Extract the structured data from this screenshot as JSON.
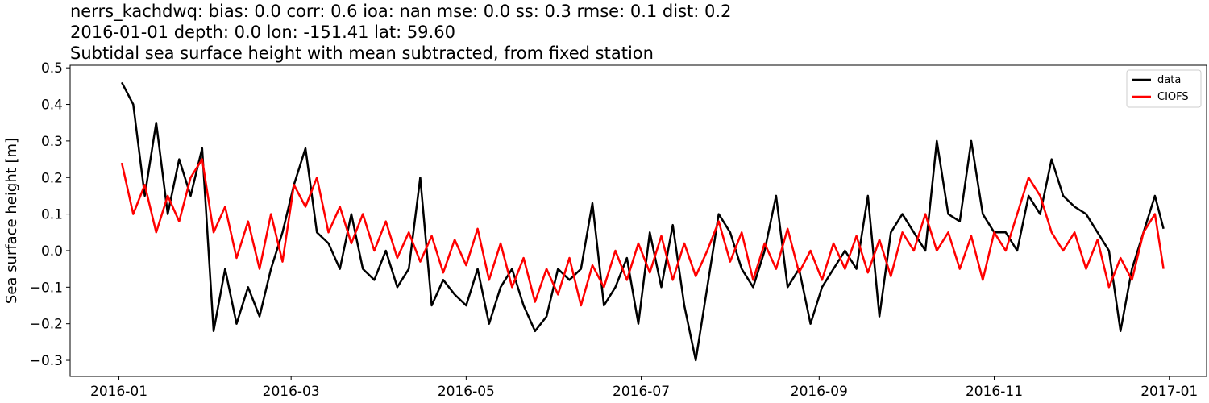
{
  "chart_data": {
    "type": "line",
    "title_lines": [
      "nerrs_kachdwq: bias: 0.0  corr: 0.6  ioa: nan  mse: 0.0  ss: 0.3  rmse: 0.1  dist: 0.2",
      "2016-01-01 depth: 0.0 lon: -151.41 lat: 59.60",
      "Subtidal sea surface height with mean subtracted, from fixed station"
    ],
    "xlabel": "",
    "ylabel": "Sea surface height [m]",
    "xlim": [
      "2015-12-15",
      "2017-01-14"
    ],
    "ylim": [
      -0.344,
      0.507
    ],
    "xticks": [
      "2016-01",
      "2016-03",
      "2016-05",
      "2016-07",
      "2016-09",
      "2016-11",
      "2017-01"
    ],
    "yticks": [
      0.5,
      0.4,
      0.3,
      0.2,
      0.1,
      0.0,
      -0.1,
      -0.2,
      -0.3
    ],
    "ytick_labels": [
      "0.5",
      "0.4",
      "0.3",
      "0.2",
      "0.1",
      "0.0",
      "−0.1",
      "−0.2",
      "−0.3"
    ],
    "grid": false,
    "legend_position": "top-right",
    "x": [
      "2016-01-02",
      "2016-01-06",
      "2016-01-10",
      "2016-01-14",
      "2016-01-18",
      "2016-01-22",
      "2016-01-26",
      "2016-01-30",
      "2016-02-03",
      "2016-02-07",
      "2016-02-11",
      "2016-02-15",
      "2016-02-19",
      "2016-02-23",
      "2016-02-27",
      "2016-03-02",
      "2016-03-06",
      "2016-03-10",
      "2016-03-14",
      "2016-03-18",
      "2016-03-22",
      "2016-03-26",
      "2016-03-30",
      "2016-04-03",
      "2016-04-07",
      "2016-04-11",
      "2016-04-15",
      "2016-04-19",
      "2016-04-23",
      "2016-04-27",
      "2016-05-01",
      "2016-05-05",
      "2016-05-09",
      "2016-05-13",
      "2016-05-17",
      "2016-05-21",
      "2016-05-25",
      "2016-05-29",
      "2016-06-02",
      "2016-06-06",
      "2016-06-10",
      "2016-06-14",
      "2016-06-18",
      "2016-06-22",
      "2016-06-26",
      "2016-06-30",
      "2016-07-04",
      "2016-07-08",
      "2016-07-12",
      "2016-07-16",
      "2016-07-20",
      "2016-07-24",
      "2016-07-28",
      "2016-08-01",
      "2016-08-05",
      "2016-08-09",
      "2016-08-13",
      "2016-08-17",
      "2016-08-21",
      "2016-08-25",
      "2016-08-29",
      "2016-09-02",
      "2016-09-06",
      "2016-09-10",
      "2016-09-14",
      "2016-09-18",
      "2016-09-22",
      "2016-09-26",
      "2016-09-30",
      "2016-10-04",
      "2016-10-08",
      "2016-10-12",
      "2016-10-16",
      "2016-10-20",
      "2016-10-24",
      "2016-10-28",
      "2016-11-01",
      "2016-11-05",
      "2016-11-09",
      "2016-11-13",
      "2016-11-17",
      "2016-11-21",
      "2016-11-25",
      "2016-11-29",
      "2016-12-03",
      "2016-12-07",
      "2016-12-11",
      "2016-12-15",
      "2016-12-19",
      "2016-12-23",
      "2016-12-27",
      "2016-12-30"
    ],
    "series": [
      {
        "name": "data",
        "color": "#000000",
        "values": [
          0.46,
          0.4,
          0.15,
          0.35,
          0.1,
          0.25,
          0.15,
          0.28,
          -0.22,
          -0.05,
          -0.2,
          -0.1,
          -0.18,
          -0.05,
          0.05,
          0.18,
          0.28,
          0.05,
          0.02,
          -0.05,
          0.1,
          -0.05,
          -0.08,
          0.0,
          -0.1,
          -0.05,
          0.2,
          -0.15,
          -0.08,
          -0.12,
          -0.15,
          -0.05,
          -0.2,
          -0.1,
          -0.05,
          -0.15,
          -0.22,
          -0.18,
          -0.05,
          -0.08,
          -0.05,
          0.13,
          -0.15,
          -0.1,
          -0.02,
          -0.2,
          0.05,
          -0.1,
          0.07,
          -0.15,
          -0.3,
          -0.1,
          0.1,
          0.05,
          -0.05,
          -0.1,
          0.0,
          0.15,
          -0.1,
          -0.05,
          -0.2,
          -0.1,
          -0.05,
          0.0,
          -0.05,
          0.15,
          -0.18,
          0.05,
          0.1,
          0.05,
          0.0,
          0.3,
          0.1,
          0.08,
          0.3,
          0.1,
          0.05,
          0.05,
          0.0,
          0.15,
          0.1,
          0.25,
          0.15,
          0.12,
          0.1,
          0.05,
          0.0,
          -0.22,
          -0.05,
          0.05,
          0.15,
          0.06
        ]
      },
      {
        "name": "CIOFS",
        "color": "#ff0000",
        "values": [
          0.24,
          0.1,
          0.18,
          0.05,
          0.15,
          0.08,
          0.2,
          0.25,
          0.05,
          0.12,
          -0.02,
          0.08,
          -0.05,
          0.1,
          -0.03,
          0.18,
          0.12,
          0.2,
          0.05,
          0.12,
          0.02,
          0.1,
          0.0,
          0.08,
          -0.02,
          0.05,
          -0.03,
          0.04,
          -0.06,
          0.03,
          -0.04,
          0.06,
          -0.08,
          0.02,
          -0.1,
          -0.02,
          -0.14,
          -0.05,
          -0.12,
          -0.02,
          -0.15,
          -0.04,
          -0.1,
          0.0,
          -0.08,
          0.02,
          -0.06,
          0.04,
          -0.08,
          0.02,
          -0.07,
          0.0,
          0.08,
          -0.03,
          0.05,
          -0.08,
          0.02,
          -0.05,
          0.06,
          -0.06,
          0.0,
          -0.08,
          0.02,
          -0.05,
          0.04,
          -0.06,
          0.03,
          -0.07,
          0.05,
          0.0,
          0.1,
          0.0,
          0.05,
          -0.05,
          0.04,
          -0.08,
          0.05,
          0.0,
          0.1,
          0.2,
          0.15,
          0.05,
          0.0,
          0.05,
          -0.05,
          0.03,
          -0.1,
          -0.02,
          -0.08,
          0.05,
          0.1,
          -0.05
        ]
      }
    ]
  }
}
